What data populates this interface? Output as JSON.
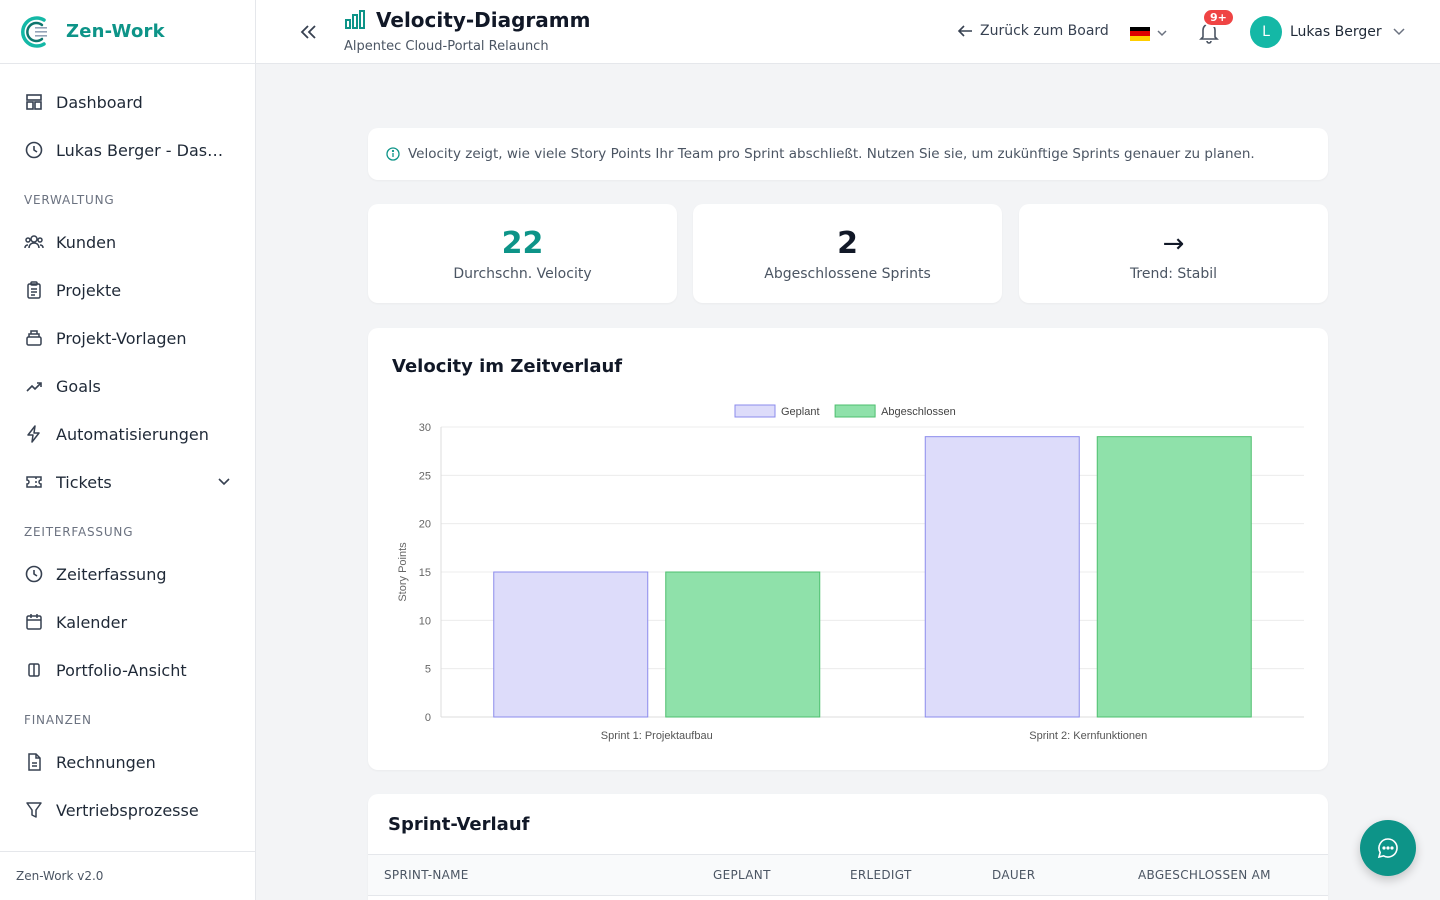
{
  "app": {
    "name": "Zen-Work",
    "version": "Zen-Work v2.0"
  },
  "sidebar": {
    "items": [
      {
        "label": "Dashboard",
        "icon": "dashboard-icon"
      },
      {
        "label": "Lukas Berger - Dashboard",
        "icon": "clock-icon"
      }
    ],
    "sections": [
      {
        "title": "VERWALTUNG",
        "items": [
          {
            "label": "Kunden",
            "icon": "users-icon"
          },
          {
            "label": "Projekte",
            "icon": "clipboard-icon"
          },
          {
            "label": "Projekt-Vorlagen",
            "icon": "template-icon"
          },
          {
            "label": "Goals",
            "icon": "trending-up-icon"
          },
          {
            "label": "Automatisierungen",
            "icon": "lightning-icon"
          },
          {
            "label": "Tickets",
            "icon": "ticket-icon"
          }
        ]
      },
      {
        "title": "ZEITERFASSUNG",
        "items": [
          {
            "label": "Zeiterfassung",
            "icon": "clock-icon"
          },
          {
            "label": "Kalender",
            "icon": "calendar-icon"
          },
          {
            "label": "Portfolio-Ansicht",
            "icon": "columns-icon"
          }
        ]
      },
      {
        "title": "FINANZEN",
        "items": [
          {
            "label": "Rechnungen",
            "icon": "document-icon"
          },
          {
            "label": "Vertriebsprozesse",
            "icon": "funnel-icon"
          }
        ]
      }
    ]
  },
  "header": {
    "title": "Velocity-Diagramm",
    "subtitle": "Alpentec Cloud-Portal Relaunch",
    "back_label": "Zurück zum Board",
    "notification_badge": "9+",
    "user_initial": "L",
    "user_name": "Lukas Berger"
  },
  "info": {
    "text": "Velocity zeigt, wie viele Story Points Ihr Team pro Sprint abschließt. Nutzen Sie sie, um zukünftige Sprints genauer zu planen."
  },
  "stats": [
    {
      "value": "22",
      "label": "Durchschn. Velocity",
      "color": "#0d9488"
    },
    {
      "value": "2",
      "label": "Abgeschlossene Sprints",
      "color": "#111827"
    },
    {
      "value": "→",
      "label": "Trend: Stabil",
      "color": "#111827"
    }
  ],
  "chart_card": {
    "title": "Velocity im Zeitverlauf"
  },
  "chart_data": {
    "type": "bar",
    "categories": [
      "Sprint 1: Projektaufbau",
      "Sprint 2: Kernfunktionen"
    ],
    "series": [
      {
        "name": "Geplant",
        "values": [
          15,
          29
        ],
        "fill": "#dddcfa",
        "stroke": "#8b8bec"
      },
      {
        "name": "Abgeschlossen",
        "values": [
          15,
          29
        ],
        "fill": "#8fe1aa",
        "stroke": "#4ebf6f"
      }
    ],
    "ylabel": "Story Points",
    "ylim": [
      0,
      30
    ],
    "yticks": [
      0,
      5,
      10,
      15,
      20,
      25,
      30
    ],
    "legend": "top-center",
    "grid": true
  },
  "table": {
    "title": "Sprint-Verlauf",
    "columns": [
      "SPRINT-NAME",
      "GEPLANT",
      "ERLEDIGT",
      "DAUER",
      "ABGESCHLOSSEN AM"
    ]
  },
  "colors": {
    "accent": "#0d9488",
    "badge": "#ef4444"
  }
}
